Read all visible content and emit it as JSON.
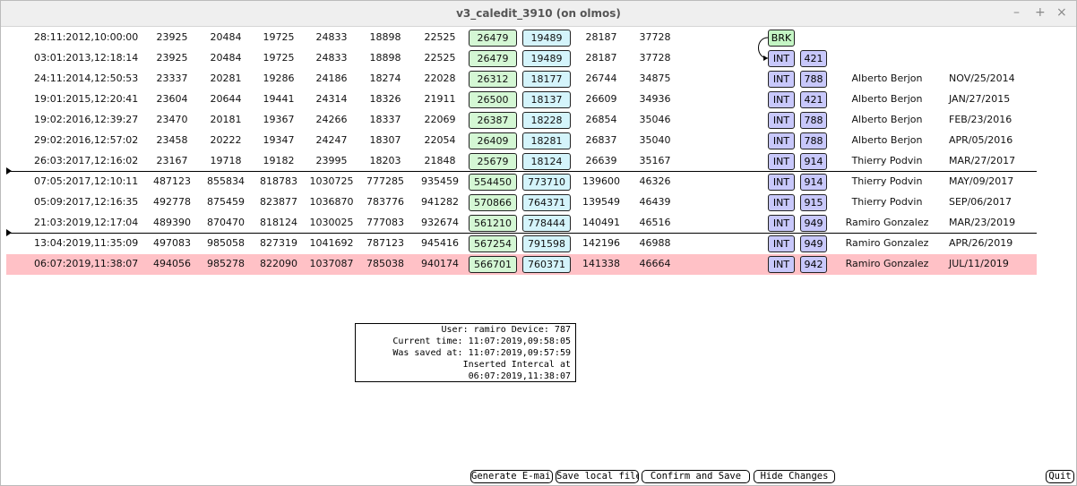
{
  "window": {
    "title": "v3_caledit_3910 (on olmos)",
    "controls": [
      "–",
      "+",
      "×"
    ]
  },
  "rows": [
    {
      "cells": [
        "28:11:2012,10:00:00",
        23925,
        20484,
        19725,
        24833,
        18898,
        22525,
        26479,
        19489,
        28187,
        37728
      ],
      "tags": [
        "BRK"
      ]
    },
    {
      "cells": [
        "03:01:2013,12:18:14",
        23925,
        20484,
        19725,
        24833,
        18898,
        22525,
        26479,
        19489,
        28187,
        37728
      ],
      "tags": [
        "INT",
        "421"
      ]
    },
    {
      "cells": [
        "24:11:2014,12:50:53",
        23337,
        20281,
        19286,
        24186,
        18274,
        22028,
        26312,
        18177,
        26744,
        34875
      ],
      "tags": [
        "INT",
        "788"
      ],
      "name": "Alberto Berjon",
      "date": "NOV/25/2014"
    },
    {
      "cells": [
        "19:01:2015,12:20:41",
        23604,
        20644,
        19441,
        24314,
        18326,
        21911,
        26500,
        18137,
        26609,
        34936
      ],
      "tags": [
        "INT",
        "421"
      ],
      "name": "Alberto Berjon",
      "date": "JAN/27/2015"
    },
    {
      "cells": [
        "19:02:2016,12:39:27",
        23470,
        20181,
        19367,
        24266,
        18337,
        22069,
        26387,
        18228,
        26854,
        35046
      ],
      "tags": [
        "INT",
        "788"
      ],
      "name": "Alberto Berjon",
      "date": "FEB/23/2016"
    },
    {
      "cells": [
        "29:02:2016,12:57:02",
        23458,
        20222,
        19347,
        24247,
        18307,
        22054,
        26409,
        18281,
        26837,
        35040
      ],
      "tags": [
        "INT",
        "788"
      ],
      "name": "Alberto Berjon",
      "date": "APR/05/2016"
    },
    {
      "cells": [
        "26:03:2017,12:16:02",
        23167,
        19718,
        19182,
        23995,
        18203,
        21848,
        25679,
        18124,
        26639,
        35167
      ],
      "tags": [
        "INT",
        "914"
      ],
      "name": "Thierry Podvin",
      "date": "MAR/27/2017"
    },
    {
      "cells": [
        "07:05:2017,12:10:11",
        487123,
        855834,
        818783,
        1030725,
        777285,
        935459,
        554450,
        773710,
        139600,
        46326
      ],
      "tags": [
        "INT",
        "914"
      ],
      "name": "Thierry Podvin",
      "date": "MAY/09/2017"
    },
    {
      "cells": [
        "05:09:2017,12:16:35",
        492778,
        875459,
        823877,
        1036870,
        783776,
        941282,
        570866,
        764371,
        139549,
        46439
      ],
      "tags": [
        "INT",
        "915"
      ],
      "name": "Thierry Podvin",
      "date": "SEP/06/2017"
    },
    {
      "cells": [
        "21:03:2019,12:17:04",
        489390,
        870470,
        818124,
        1030025,
        777083,
        932674,
        561210,
        778444,
        140491,
        46516
      ],
      "tags": [
        "INT",
        "949"
      ],
      "name": "Ramiro Gonzalez",
      "date": "MAR/23/2019"
    },
    {
      "cells": [
        "13:04:2019,11:35:09",
        497083,
        985058,
        827319,
        1041692,
        787123,
        945416,
        567254,
        791598,
        142196,
        46988
      ],
      "tags": [
        "INT",
        "949"
      ],
      "name": "Ramiro Gonzalez",
      "date": "APR/26/2019"
    },
    {
      "cells": [
        "06:07:2019,11:38:07",
        494056,
        985278,
        822090,
        1037087,
        785038,
        940174,
        566701,
        760371,
        141338,
        46664
      ],
      "tags": [
        "INT",
        "942"
      ],
      "name": "Ramiro Gonzalez",
      "date": "JUL/11/2019"
    }
  ],
  "info": [
    "User: ramiro Device: 787",
    "Current time: 11:07:2019,09:58:05",
    "Was saved at: 11:07:2019,09:57:59",
    "Inserted Intercal at 06:07:2019,11:38:07"
  ],
  "buttons": [
    "Generate E-mail",
    "Save local file",
    "Confirm and Save",
    "Hide Changes",
    "Quit"
  ]
}
